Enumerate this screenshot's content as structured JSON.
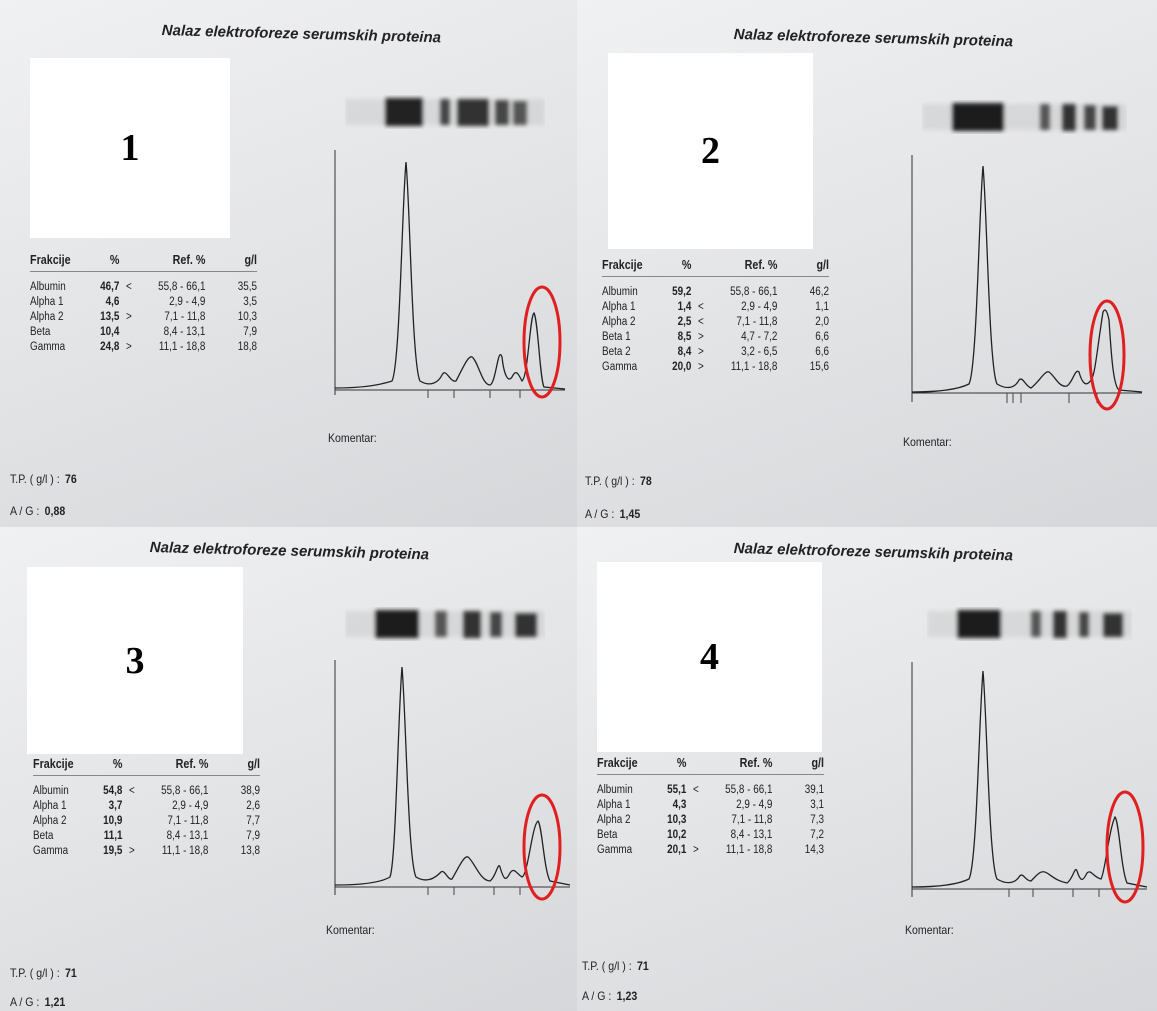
{
  "reports": [
    {
      "label": "1",
      "title": "Nalaz elektroforeze serumskih proteina",
      "headers": {
        "fraction": "Frakcije",
        "pct": "%",
        "ref": "Ref. %",
        "gl": "g/l"
      },
      "rows": [
        {
          "name": "Albumin",
          "pct": "46,7",
          "flag": "<",
          "ref": "55,8 - 66,1",
          "gl": "35,5"
        },
        {
          "name": "Alpha 1",
          "pct": "4,6",
          "flag": "",
          "ref": "2,9 - 4,9",
          "gl": "3,5"
        },
        {
          "name": "Alpha 2",
          "pct": "13,5",
          "flag": ">",
          "ref": "7,1 - 11,8",
          "gl": "10,3"
        },
        {
          "name": "Beta",
          "pct": "10,4",
          "flag": "",
          "ref": "8,4 - 13,1",
          "gl": "7,9"
        },
        {
          "name": "Gamma",
          "pct": "24,8",
          "flag": ">",
          "ref": "11,1 - 18,8",
          "gl": "18,8"
        }
      ],
      "tp_label": "T.P. ( g/l ) :",
      "tp_value": "76",
      "ag_label": "A / G :",
      "ag_value": "0,88",
      "komentar": "Komentar:"
    },
    {
      "label": "2",
      "title": "Nalaz elektroforeze serumskih proteina",
      "headers": {
        "fraction": "Frakcije",
        "pct": "%",
        "ref": "Ref. %",
        "gl": "g/l"
      },
      "rows": [
        {
          "name": "Albumin",
          "pct": "59,2",
          "flag": "",
          "ref": "55,8 - 66,1",
          "gl": "46,2"
        },
        {
          "name": "Alpha 1",
          "pct": "1,4",
          "flag": "<",
          "ref": "2,9 - 4,9",
          "gl": "1,1"
        },
        {
          "name": "Alpha 2",
          "pct": "2,5",
          "flag": "<",
          "ref": "7,1 - 11,8",
          "gl": "2,0"
        },
        {
          "name": "Beta 1",
          "pct": "8,5",
          "flag": ">",
          "ref": "4,7 - 7,2",
          "gl": "6,6"
        },
        {
          "name": "Beta 2",
          "pct": "8,4",
          "flag": ">",
          "ref": "3,2 - 6,5",
          "gl": "6,6"
        },
        {
          "name": "Gamma",
          "pct": "20,0",
          "flag": ">",
          "ref": "11,1 - 18,8",
          "gl": "15,6"
        }
      ],
      "tp_label": "T.P. ( g/l ) :",
      "tp_value": "78",
      "ag_label": "A / G :",
      "ag_value": "1,45",
      "komentar": "Komentar:"
    },
    {
      "label": "3",
      "title": "Nalaz elektroforeze serumskih proteina",
      "headers": {
        "fraction": "Frakcije",
        "pct": "%",
        "ref": "Ref. %",
        "gl": "g/l"
      },
      "rows": [
        {
          "name": "Albumin",
          "pct": "54,8",
          "flag": "<",
          "ref": "55,8 - 66,1",
          "gl": "38,9"
        },
        {
          "name": "Alpha 1",
          "pct": "3,7",
          "flag": "",
          "ref": "2,9 - 4,9",
          "gl": "2,6"
        },
        {
          "name": "Alpha 2",
          "pct": "10,9",
          "flag": "",
          "ref": "7,1 - 11,8",
          "gl": "7,7"
        },
        {
          "name": "Beta",
          "pct": "11,1",
          "flag": "",
          "ref": "8,4 - 13,1",
          "gl": "7,9"
        },
        {
          "name": "Gamma",
          "pct": "19,5",
          "flag": ">",
          "ref": "11,1 - 18,8",
          "gl": "13,8"
        }
      ],
      "tp_label": "T.P. ( g/l ) :",
      "tp_value": "71",
      "ag_label": "A / G :",
      "ag_value": "1,21",
      "komentar": "Komentar:"
    },
    {
      "label": "4",
      "title": "Nalaz elektroforeze serumskih proteina",
      "headers": {
        "fraction": "Frakcije",
        "pct": "%",
        "ref": "Ref. %",
        "gl": "g/l"
      },
      "rows": [
        {
          "name": "Albumin",
          "pct": "55,1",
          "flag": "<",
          "ref": "55,8 - 66,1",
          "gl": "39,1"
        },
        {
          "name": "Alpha 1",
          "pct": "4,3",
          "flag": "",
          "ref": "2,9 - 4,9",
          "gl": "3,1"
        },
        {
          "name": "Alpha 2",
          "pct": "10,3",
          "flag": "",
          "ref": "7,1 - 11,8",
          "gl": "7,3"
        },
        {
          "name": "Beta",
          "pct": "10,2",
          "flag": "",
          "ref": "8,4 - 13,1",
          "gl": "7,2"
        },
        {
          "name": "Gamma",
          "pct": "20,1",
          "flag": ">",
          "ref": "11,1 - 18,8",
          "gl": "14,3"
        }
      ],
      "tp_label": "T.P. ( g/l ) :",
      "tp_value": "71",
      "ag_label": "A / G :",
      "ag_value": "1,23",
      "komentar": "Komentar:"
    }
  ],
  "highlight_color": "#e02020"
}
